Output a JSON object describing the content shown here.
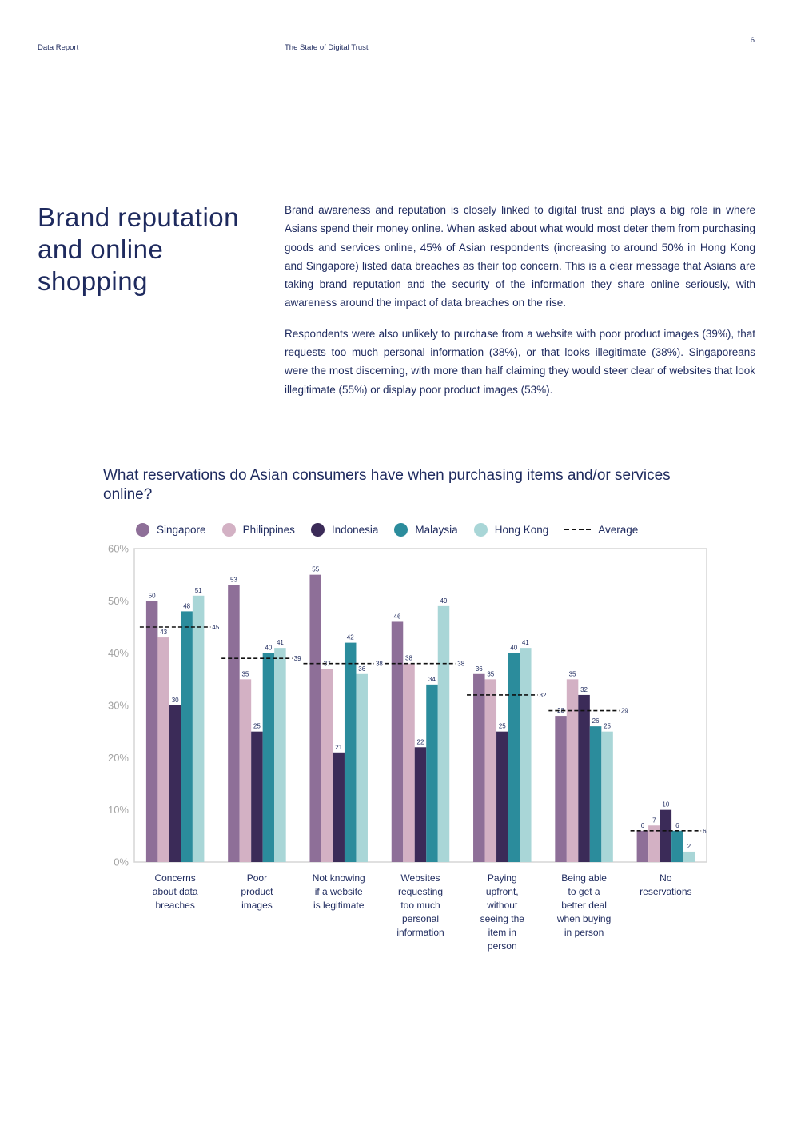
{
  "header": {
    "left": "Data Report",
    "center": "The State of Digital Trust",
    "page_number": "6"
  },
  "section_title": "Brand reputation and online shopping",
  "paragraphs": [
    "Brand awareness and reputation is closely linked to digital trust and plays a big role in where Asians spend their money online. When asked about what would most deter them from purchasing goods and services online, 45% of Asian respondents (increasing to around 50% in Hong Kong and Singapore) listed data breaches as their top concern. This is a clear message that Asians are taking brand reputation and the security of the information they share online seriously, with awareness around the impact of data breaches on the rise.",
    "Respondents were also unlikely to purchase from a website with poor product images (39%), that requests too much personal information (38%), or that looks illegitimate (38%). Singaporeans were the most discerning, with more than half claiming they would steer clear of websites that look illegitimate (55%) or display poor product images (53%)."
  ],
  "chart_data": {
    "type": "bar",
    "title": "What reservations do Asian consumers have when purchasing items and/or services online?",
    "categories": [
      [
        "Concerns",
        "about data",
        "breaches"
      ],
      [
        "Poor",
        "product",
        "images"
      ],
      [
        "Not knowing",
        "if a website",
        "is legitimate"
      ],
      [
        "Websites",
        "requesting",
        "too much",
        "personal",
        "information"
      ],
      [
        "Paying",
        "upfront,",
        "without",
        "seeing the",
        "item in",
        "person"
      ],
      [
        "Being able",
        "to get a",
        "better deal",
        "when buying",
        "in person"
      ],
      [
        "No",
        "reservations"
      ]
    ],
    "series": [
      {
        "name": "Singapore",
        "color": "#8e6f98",
        "values": [
          50,
          53,
          55,
          46,
          36,
          28,
          6
        ]
      },
      {
        "name": "Philippines",
        "color": "#d3b1c4",
        "values": [
          43,
          35,
          37,
          38,
          35,
          35,
          7
        ]
      },
      {
        "name": "Indonesia",
        "color": "#3b2b58",
        "values": [
          30,
          25,
          21,
          22,
          25,
          32,
          10
        ]
      },
      {
        "name": "Malaysia",
        "color": "#2b8c9c",
        "values": [
          48,
          40,
          42,
          34,
          40,
          26,
          6
        ]
      },
      {
        "name": "Hong Kong",
        "color": "#a9d6d7",
        "values": [
          51,
          41,
          36,
          49,
          41,
          25,
          2
        ]
      }
    ],
    "average": {
      "name": "Average",
      "values": [
        45,
        39,
        38,
        38,
        32,
        29,
        6
      ]
    },
    "ylim": [
      0,
      60
    ],
    "yticks": [
      0,
      10,
      20,
      30,
      40,
      50,
      60
    ],
    "ytick_labels": [
      "0%",
      "10%",
      "20%",
      "30%",
      "40%",
      "50%",
      "60%"
    ],
    "xlabel": "",
    "ylabel": "",
    "legend_position": "top"
  }
}
